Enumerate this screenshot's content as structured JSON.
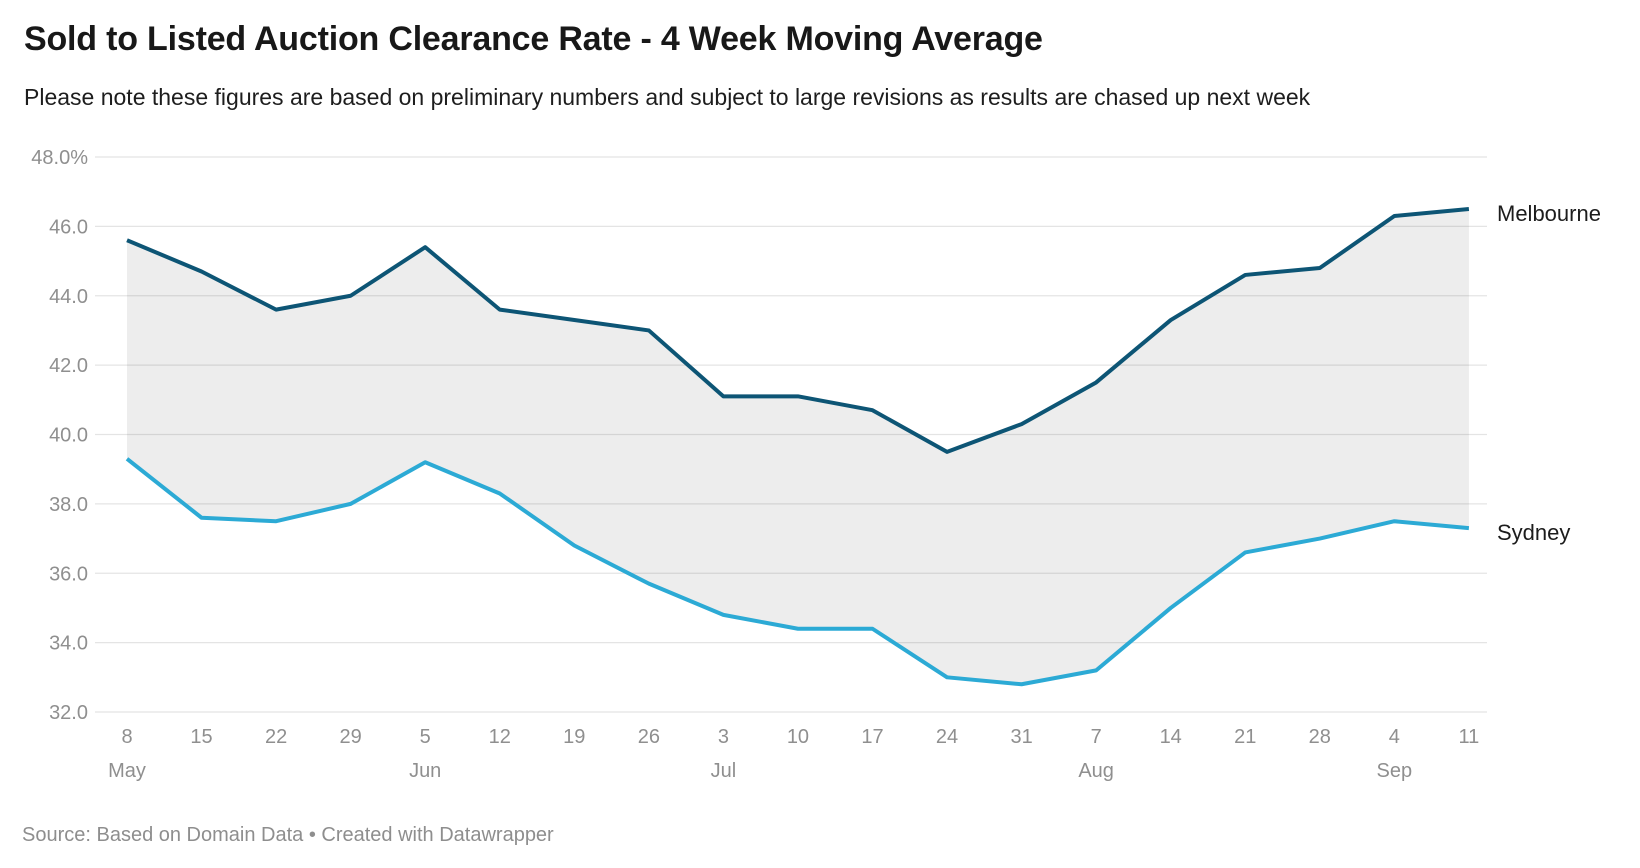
{
  "header": {
    "title": "Sold to Listed Auction Clearance Rate - 4 Week Moving Average",
    "subtitle": "Please note these figures are based on preliminary numbers and subject to large revisions as results are chased up next week"
  },
  "chart_data": {
    "type": "line",
    "title": "Sold to Listed Auction Clearance Rate - 4 Week Moving Average",
    "categories": [
      "8",
      "15",
      "22",
      "29",
      "5",
      "12",
      "19",
      "26",
      "3",
      "10",
      "17",
      "24",
      "31",
      "7",
      "14",
      "21",
      "28",
      "4",
      "11"
    ],
    "month_labels": [
      {
        "index": 0,
        "label": "May"
      },
      {
        "index": 4,
        "label": "Jun"
      },
      {
        "index": 8,
        "label": "Jul"
      },
      {
        "index": 13,
        "label": "Aug"
      },
      {
        "index": 17,
        "label": "Sep"
      }
    ],
    "series": [
      {
        "name": "Melbourne",
        "color": "#0d5575",
        "values": [
          45.6,
          44.7,
          43.6,
          44.0,
          45.4,
          43.6,
          43.3,
          43.0,
          41.1,
          41.1,
          40.7,
          39.5,
          40.3,
          41.5,
          43.3,
          44.6,
          44.8,
          46.3,
          46.5
        ]
      },
      {
        "name": "Sydney",
        "color": "#2caad5",
        "values": [
          39.3,
          37.6,
          37.5,
          38.0,
          39.2,
          38.3,
          36.8,
          35.7,
          34.8,
          34.4,
          34.4,
          33.0,
          32.8,
          33.2,
          35.0,
          36.6,
          37.0,
          37.5,
          37.3
        ]
      }
    ],
    "unit": "%",
    "ylim": [
      32,
      48
    ],
    "ytick_values": [
      48,
      46,
      44,
      42,
      40,
      38,
      36,
      34,
      32
    ],
    "ytick_labels": [
      "48.0%",
      "46.0",
      "44.0",
      "42.0",
      "40.0",
      "38.0",
      "36.0",
      "34.0",
      "32.0"
    ],
    "grid": true,
    "fill_between_color": "#ededed",
    "legend_position": "line-end-labels"
  },
  "footer": {
    "source": "Source: Based on Domain Data • Created with Datawrapper"
  },
  "colors": {
    "melbourne_line": "#0d5575",
    "sydney_line": "#2caad5",
    "label_text": "#1c1c1c",
    "axis_text": "#8f8f8f",
    "gridline": "#e4e4e4",
    "band_fill": "#ededed"
  }
}
